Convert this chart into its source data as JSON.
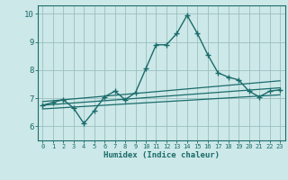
{
  "xlabel": "Humidex (Indice chaleur)",
  "ylabel": "",
  "xlim": [
    -0.5,
    23.5
  ],
  "ylim": [
    5.5,
    10.3
  ],
  "xticks": [
    0,
    1,
    2,
    3,
    4,
    5,
    6,
    7,
    8,
    9,
    10,
    11,
    12,
    13,
    14,
    15,
    16,
    17,
    18,
    19,
    20,
    21,
    22,
    23
  ],
  "yticks": [
    6,
    7,
    8,
    9,
    10
  ],
  "bg_color": "#cde8e8",
  "grid_color": "#9abfbf",
  "line_color": "#1a6b6b",
  "main_x": [
    0,
    1,
    2,
    3,
    4,
    5,
    6,
    7,
    8,
    9,
    10,
    11,
    12,
    13,
    14,
    15,
    16,
    17,
    18,
    19,
    20,
    21,
    22,
    23
  ],
  "main_y": [
    6.75,
    6.85,
    6.95,
    6.65,
    6.1,
    6.55,
    7.05,
    7.25,
    6.95,
    7.2,
    8.05,
    8.9,
    8.9,
    9.3,
    9.95,
    9.3,
    8.55,
    7.9,
    7.75,
    7.65,
    7.25,
    7.05,
    7.25,
    7.3
  ],
  "upper_line_x": [
    0,
    23
  ],
  "upper_line_y": [
    6.88,
    7.62
  ],
  "lower_line_x": [
    0,
    23
  ],
  "lower_line_y": [
    6.62,
    7.12
  ],
  "mid_line_x": [
    0,
    23
  ],
  "mid_line_y": [
    6.75,
    7.37
  ]
}
